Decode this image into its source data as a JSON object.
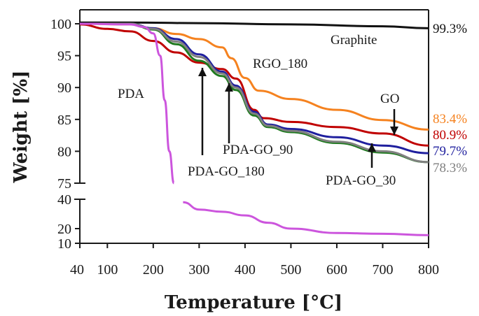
{
  "chart_data": {
    "type": "line",
    "xlabel": "Temperature [°C]",
    "ylabel": "Weight [%]",
    "xlim": [
      40,
      800
    ],
    "ylim_upper": [
      75,
      100
    ],
    "ylim_lower": [
      10,
      40
    ],
    "x_ticks": [
      "40",
      "100",
      "200",
      "300",
      "400",
      "500",
      "600",
      "700",
      "800"
    ],
    "y_ticks_upper": [
      "100",
      "95",
      "90",
      "85",
      "80",
      "75"
    ],
    "y_ticks_lower": [
      "40",
      "20",
      "10"
    ],
    "axis_break": true,
    "grid": false,
    "series": [
      {
        "name": "Graphite",
        "color": "#111111",
        "x": [
          40,
          150,
          300,
          500,
          700,
          800
        ],
        "y": [
          100.2,
          100.2,
          100.1,
          99.9,
          99.6,
          99.3
        ]
      },
      {
        "name": "RGO_180",
        "color": "#f5821f",
        "x": [
          40,
          150,
          200,
          250,
          300,
          350,
          370,
          400,
          430,
          500,
          600,
          700,
          800
        ],
        "y": [
          100,
          99.9,
          99.3,
          98.4,
          97.6,
          96.3,
          94.6,
          91.5,
          89.5,
          88.2,
          86.5,
          84.9,
          83.4
        ]
      },
      {
        "name": "GO",
        "color": "#c00000",
        "x": [
          40,
          100,
          150,
          200,
          250,
          300,
          350,
          380,
          420,
          440,
          500,
          600,
          700,
          800
        ],
        "y": [
          99.9,
          99.2,
          98.8,
          97.3,
          95.5,
          93.9,
          92.9,
          91.4,
          86.5,
          85.2,
          84.6,
          83.8,
          82.8,
          80.9
        ]
      },
      {
        "name": "PDA-GO_90",
        "color": "#1f1f9e",
        "x": [
          40,
          150,
          200,
          250,
          300,
          350,
          380,
          420,
          450,
          500,
          600,
          700,
          800
        ],
        "y": [
          100,
          100,
          99.3,
          97.6,
          95.2,
          92.5,
          90.3,
          86.2,
          84.2,
          83.5,
          82.2,
          80.9,
          79.7
        ]
      },
      {
        "name": "PDA-GO_180",
        "color": "#1f7a1f",
        "x": [
          40,
          150,
          200,
          250,
          300,
          350,
          380,
          420,
          450,
          500,
          600,
          700,
          800
        ],
        "y": [
          100,
          100,
          99.1,
          96.8,
          94.2,
          91.8,
          89.6,
          85.6,
          83.8,
          83.0,
          81.3,
          79.8,
          78.3
        ]
      },
      {
        "name": "PDA-GO_30",
        "color": "#808080",
        "x": [
          40,
          150,
          200,
          250,
          300,
          350,
          380,
          420,
          450,
          500,
          600,
          700,
          800
        ],
        "y": [
          100,
          100,
          99.2,
          97.2,
          94.8,
          92.2,
          90.0,
          85.9,
          84.0,
          83.2,
          81.5,
          80.0,
          78.3
        ]
      },
      {
        "name": "PDA",
        "color": "#cc55dd",
        "x": [
          40,
          150,
          180,
          200,
          215,
          225,
          235,
          245,
          265,
          300,
          350,
          400,
          450,
          500,
          600,
          700,
          800
        ],
        "y": [
          100,
          99.9,
          99.5,
          98.5,
          95,
          88,
          80,
          75,
          38,
          33,
          31.5,
          29,
          24,
          20,
          17,
          16.5,
          15.5
        ]
      }
    ],
    "end_labels": [
      {
        "text": "99.3%",
        "color": "#111111"
      },
      {
        "text": "83.4%",
        "color": "#f5821f"
      },
      {
        "text": "80.9%",
        "color": "#c00000"
      },
      {
        "text": "79.7%",
        "color": "#1f1f9e"
      },
      {
        "text": "78.3%",
        "color": "#808080"
      }
    ],
    "annotations": [
      "Graphite",
      "RGO_180",
      "PDA",
      "GO",
      "PDA-GO_90",
      "PDA-GO_180",
      "PDA-GO_30"
    ]
  }
}
